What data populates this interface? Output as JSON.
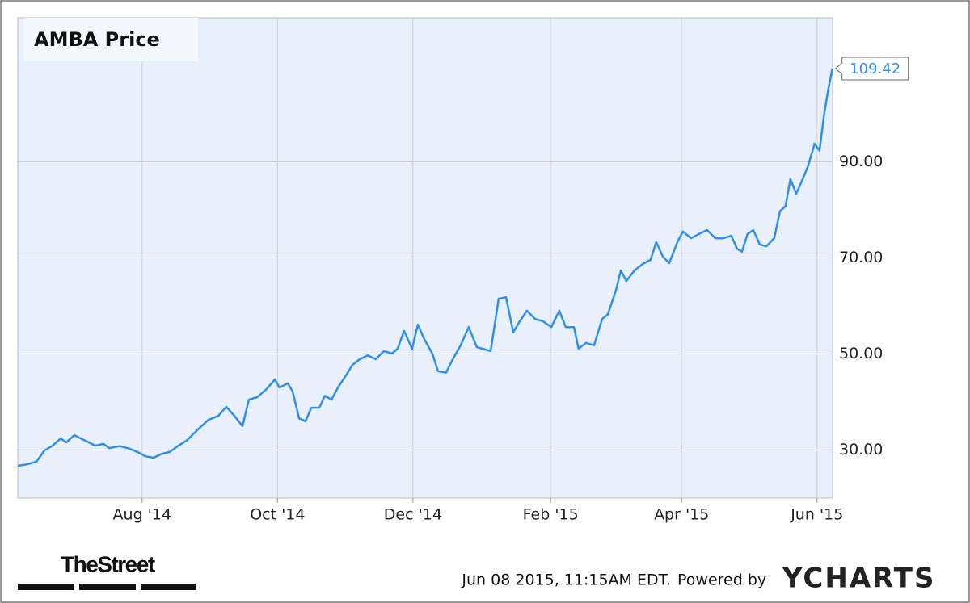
{
  "chart_data": {
    "type": "line",
    "title": "AMBA Price",
    "x": [
      0,
      4.7,
      8.4,
      12.0,
      15.7,
      19.3,
      21.8,
      25.5,
      28.4,
      32.0,
      34.9,
      38.6,
      41.1,
      45.9,
      50.2,
      53.9,
      57.5,
      61.2,
      64.8,
      68.4,
      72.1,
      76.4,
      81.2,
      85.9,
      90.3,
      93.9,
      97.6,
      101.2,
      104.1,
      107.8,
      112.1,
      115.8,
      117.9,
      121.6,
      123.8,
      126.7,
      129.6,
      132.2,
      135.8,
      138.3,
      141.3,
      144.2,
      147.8,
      150.7,
      154.0,
      157.6,
      161.3,
      164.9,
      168.5,
      171.1,
      174.0,
      177.6,
      180.2,
      183.1,
      186.7,
      189.3,
      192.9,
      195.9,
      199.5,
      203.1,
      206.8,
      209.3,
      213.0,
      216.6,
      219.9,
      223.2,
      225.7,
      229.3,
      233.0,
      236.6,
      240.3,
      243.9,
      246.8,
      250.5,
      252.6,
      255.9,
      259.6,
      263.2,
      265.7,
      269.4,
      271.6,
      274.1,
      277.8,
      281.4,
      285.0,
      287.6,
      290.5,
      293.4,
      297.1,
      299.6,
      303.2,
      306.9,
      310.5,
      314.2,
      317.8,
      321.4,
      324.0,
      326.2,
      328.7,
      331.3,
      334.2,
      337.1,
      340.7,
      343.3,
      345.8,
      348.0,
      350.6,
      353.1,
      356.0,
      358.9,
      361.1,
      363.3,
      365.1,
      366.9
    ],
    "values": [
      26.7,
      27.1,
      27.6,
      29.9,
      30.9,
      32.4,
      31.6,
      33.1,
      32.4,
      31.6,
      30.9,
      31.3,
      30.4,
      30.8,
      30.3,
      29.6,
      28.7,
      28.4,
      29.2,
      29.6,
      30.8,
      32.1,
      34.3,
      36.3,
      37.1,
      39.0,
      37.1,
      35.0,
      40.5,
      41.0,
      42.7,
      44.7,
      43.0,
      43.9,
      42.2,
      36.6,
      36.0,
      38.8,
      38.8,
      41.3,
      40.5,
      43.0,
      45.5,
      47.7,
      48.9,
      49.7,
      48.9,
      50.6,
      50.1,
      51.1,
      54.8,
      51.1,
      56.1,
      53.1,
      50.1,
      46.4,
      46.1,
      48.9,
      51.8,
      55.6,
      51.4,
      51.1,
      50.6,
      61.5,
      61.8,
      54.5,
      56.5,
      59.0,
      57.3,
      56.8,
      55.6,
      59.0,
      55.6,
      55.6,
      51.1,
      52.3,
      51.8,
      57.3,
      58.2,
      63.2,
      67.4,
      65.2,
      67.4,
      68.7,
      69.6,
      73.3,
      70.3,
      68.9,
      73.3,
      75.5,
      74.1,
      75.0,
      75.8,
      74.1,
      74.1,
      74.6,
      71.9,
      71.3,
      75.0,
      75.8,
      72.8,
      72.4,
      74.1,
      79.7,
      80.8,
      86.4,
      83.4,
      85.9,
      89.2,
      93.8,
      92.3,
      100.2,
      105.2,
      109.42
    ],
    "color": "#2f8fe8",
    "xlim": [
      0,
      367
    ],
    "xticks": [
      {
        "value": 56,
        "label": "Aug '14"
      },
      {
        "value": 117,
        "label": "Oct '14"
      },
      {
        "value": 178,
        "label": "Dec '14"
      },
      {
        "value": 240,
        "label": "Feb '15"
      },
      {
        "value": 299,
        "label": "Apr '15"
      },
      {
        "value": 360,
        "label": "Jun '15"
      }
    ],
    "ylim": [
      20,
      120
    ],
    "yticks": [
      {
        "value": 30,
        "label": "30.00"
      },
      {
        "value": 50,
        "label": "50.00"
      },
      {
        "value": 70,
        "label": "70.00"
      },
      {
        "value": 90,
        "label": "90.00"
      }
    ],
    "grid": true
  },
  "footer": {
    "logo": "TheStreet",
    "timestamp": "Jun 08 2015, 11:15AM EDT.",
    "powered_by": "Powered by",
    "brand": "YCHARTS"
  }
}
